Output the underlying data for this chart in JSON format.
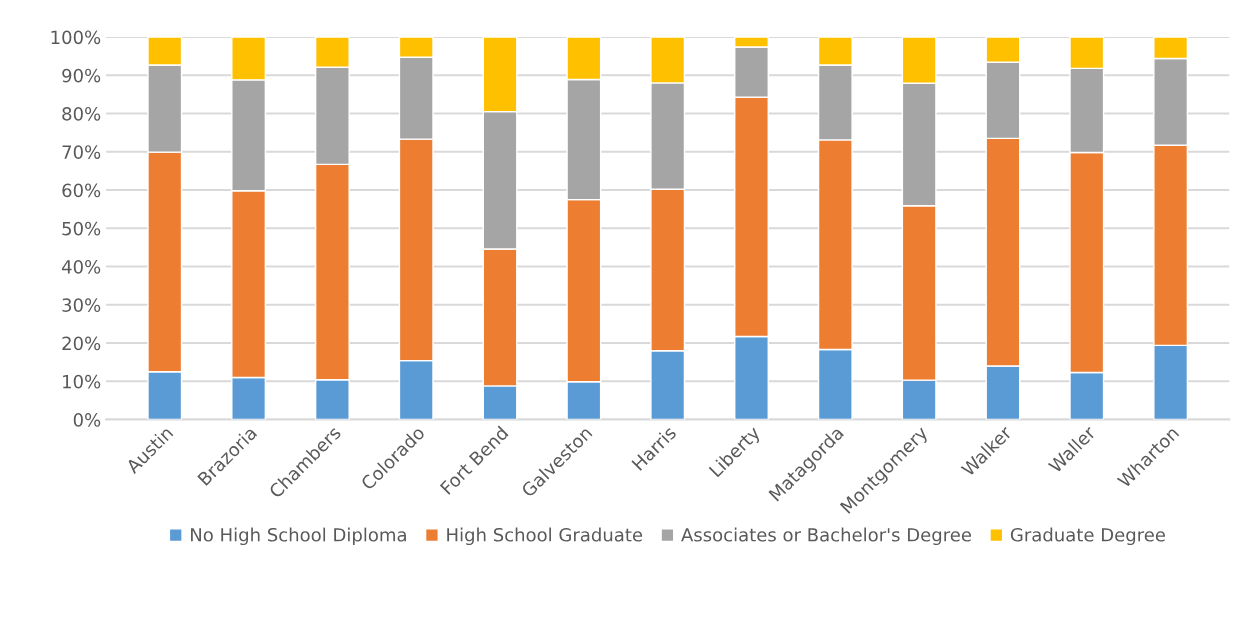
{
  "chart_data": {
    "type": "bar",
    "stacked": true,
    "categories": [
      "Austin",
      "Brazoria",
      "Chambers",
      "Colorado",
      "Fort Bend",
      "Galveston",
      "Harris",
      "Liberty",
      "Matagorda",
      "Montgomery",
      "Walker",
      "Waller",
      "Wharton"
    ],
    "series": [
      {
        "name": "No High School Diploma",
        "color": "#5b9bd5",
        "values": [
          12.5,
          11.0,
          10.4,
          15.4,
          8.8,
          9.9,
          18.0,
          21.7,
          18.3,
          10.3,
          14.0,
          12.3,
          19.4
        ]
      },
      {
        "name": "High School Graduate",
        "color": "#ed7d31",
        "values": [
          57.4,
          48.8,
          56.3,
          57.9,
          35.8,
          47.6,
          42.2,
          62.6,
          54.8,
          45.6,
          59.5,
          57.5,
          52.3
        ]
      },
      {
        "name": "Associates or Bachelor's Degree",
        "color": "#a5a5a5",
        "values": [
          22.8,
          29.0,
          25.4,
          21.4,
          35.9,
          31.4,
          27.8,
          13.1,
          19.6,
          32.0,
          19.9,
          22.0,
          22.7
        ]
      },
      {
        "name": "Graduate Degree",
        "color": "#ffc000",
        "values": [
          7.3,
          11.2,
          7.9,
          5.3,
          19.5,
          11.1,
          12.0,
          2.6,
          7.3,
          12.1,
          6.6,
          8.2,
          5.6
        ]
      }
    ],
    "ylim": [
      0,
      100
    ],
    "yticks": [
      {
        "value": 0,
        "label": "0%"
      },
      {
        "value": 10,
        "label": "10%"
      },
      {
        "value": 20,
        "label": "20%"
      },
      {
        "value": 30,
        "label": "30%"
      },
      {
        "value": 40,
        "label": "40%"
      },
      {
        "value": 50,
        "label": "50%"
      },
      {
        "value": 60,
        "label": "60%"
      },
      {
        "value": 70,
        "label": "70%"
      },
      {
        "value": 80,
        "label": "80%"
      },
      {
        "value": 90,
        "label": "90%"
      },
      {
        "value": 100,
        "label": "100%"
      }
    ],
    "grid": "y",
    "legend": "bottom"
  }
}
